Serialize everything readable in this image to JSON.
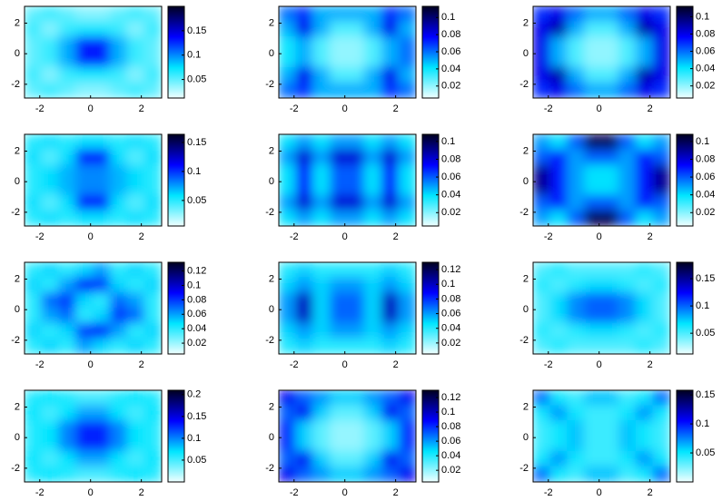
{
  "chart_data": [
    {
      "type": "heatmap",
      "xlim": [
        -2.6,
        2.8
      ],
      "ylim": [
        -2.9,
        3.1
      ],
      "xticks": [
        -2,
        0,
        2
      ],
      "yticks": [
        2,
        0,
        -2
      ],
      "clim": [
        0.012,
        0.2
      ],
      "cticks": [
        0.05,
        0.1,
        0.15
      ],
      "colormap": [
        "#f0ffff",
        "#00e5ff",
        "#0000ff",
        "#000020"
      ],
      "z": [
        [
          0.05,
          0.06,
          0.05,
          0.04,
          0.04,
          0.05,
          0.06,
          0.05
        ],
        [
          0.06,
          0.04,
          0.06,
          0.07,
          0.07,
          0.06,
          0.04,
          0.06
        ],
        [
          0.05,
          0.06,
          0.09,
          0.13,
          0.13,
          0.09,
          0.06,
          0.05
        ],
        [
          0.05,
          0.06,
          0.09,
          0.13,
          0.13,
          0.09,
          0.06,
          0.05
        ],
        [
          0.06,
          0.04,
          0.06,
          0.07,
          0.07,
          0.06,
          0.04,
          0.06
        ],
        [
          0.05,
          0.06,
          0.05,
          0.04,
          0.04,
          0.05,
          0.06,
          0.05
        ]
      ]
    },
    {
      "type": "heatmap",
      "xlim": [
        -2.6,
        2.8
      ],
      "ylim": [
        -2.9,
        3.1
      ],
      "xticks": [
        -2,
        0,
        2
      ],
      "yticks": [
        2,
        0,
        -2
      ],
      "clim": [
        0.006,
        0.113
      ],
      "cticks": [
        0.02,
        0.04,
        0.06,
        0.08,
        0.1
      ],
      "colormap": [
        "#f0ffff",
        "#00e5ff",
        "#0000ff",
        "#000020"
      ],
      "z": [
        [
          0.06,
          0.07,
          0.05,
          0.05,
          0.05,
          0.05,
          0.07,
          0.06
        ],
        [
          0.05,
          0.08,
          0.05,
          0.03,
          0.03,
          0.05,
          0.08,
          0.05
        ],
        [
          0.04,
          0.05,
          0.03,
          0.02,
          0.02,
          0.03,
          0.05,
          0.06
        ],
        [
          0.04,
          0.05,
          0.03,
          0.02,
          0.02,
          0.03,
          0.05,
          0.06
        ],
        [
          0.05,
          0.08,
          0.05,
          0.03,
          0.03,
          0.05,
          0.08,
          0.05
        ],
        [
          0.06,
          0.07,
          0.05,
          0.05,
          0.05,
          0.05,
          0.07,
          0.06
        ]
      ]
    },
    {
      "type": "heatmap",
      "xlim": [
        -2.6,
        2.8
      ],
      "ylim": [
        -2.9,
        3.1
      ],
      "xticks": [
        -2,
        0,
        2
      ],
      "yticks": [
        2,
        0,
        -2
      ],
      "clim": [
        0.006,
        0.112
      ],
      "cticks": [
        0.02,
        0.04,
        0.06,
        0.08,
        0.1
      ],
      "colormap": [
        "#f0ffff",
        "#00e5ff",
        "#0000ff",
        "#000020"
      ],
      "z": [
        [
          0.07,
          0.08,
          0.06,
          0.05,
          0.05,
          0.06,
          0.08,
          0.07
        ],
        [
          0.08,
          0.09,
          0.05,
          0.03,
          0.03,
          0.05,
          0.09,
          0.08
        ],
        [
          0.08,
          0.05,
          0.03,
          0.02,
          0.02,
          0.03,
          0.05,
          0.08
        ],
        [
          0.08,
          0.05,
          0.03,
          0.02,
          0.02,
          0.03,
          0.05,
          0.08
        ],
        [
          0.08,
          0.09,
          0.05,
          0.03,
          0.03,
          0.05,
          0.09,
          0.08
        ],
        [
          0.07,
          0.08,
          0.06,
          0.05,
          0.05,
          0.06,
          0.08,
          0.07
        ]
      ]
    },
    {
      "type": "heatmap",
      "xlim": [
        -2.6,
        2.8
      ],
      "ylim": [
        -2.9,
        3.1
      ],
      "xticks": [
        -2,
        0,
        2
      ],
      "yticks": [
        2,
        0,
        -2
      ],
      "clim": [
        0.006,
        0.164
      ],
      "cticks": [
        0.05,
        0.1,
        0.15
      ],
      "colormap": [
        "#f0ffff",
        "#00e5ff",
        "#0000ff",
        "#000020"
      ],
      "z": [
        [
          0.05,
          0.06,
          0.05,
          0.06,
          0.06,
          0.05,
          0.06,
          0.05
        ],
        [
          0.06,
          0.04,
          0.06,
          0.11,
          0.11,
          0.06,
          0.04,
          0.06
        ],
        [
          0.05,
          0.06,
          0.07,
          0.08,
          0.08,
          0.07,
          0.06,
          0.05
        ],
        [
          0.05,
          0.06,
          0.07,
          0.08,
          0.08,
          0.07,
          0.06,
          0.05
        ],
        [
          0.06,
          0.04,
          0.06,
          0.11,
          0.11,
          0.06,
          0.04,
          0.06
        ],
        [
          0.05,
          0.06,
          0.05,
          0.06,
          0.06,
          0.05,
          0.06,
          0.05
        ]
      ]
    },
    {
      "type": "heatmap",
      "xlim": [
        -2.6,
        2.8
      ],
      "ylim": [
        -2.9,
        3.1
      ],
      "xticks": [
        -2,
        0,
        2
      ],
      "yticks": [
        2,
        0,
        -2
      ],
      "clim": [
        0.005,
        0.108
      ],
      "cticks": [
        0.02,
        0.04,
        0.06,
        0.08,
        0.1
      ],
      "colormap": [
        "#f0ffff",
        "#00e5ff",
        "#0000ff",
        "#000020"
      ],
      "z": [
        [
          0.04,
          0.05,
          0.04,
          0.05,
          0.05,
          0.04,
          0.05,
          0.04
        ],
        [
          0.05,
          0.08,
          0.05,
          0.08,
          0.08,
          0.05,
          0.08,
          0.05
        ],
        [
          0.04,
          0.07,
          0.04,
          0.06,
          0.06,
          0.04,
          0.07,
          0.04
        ],
        [
          0.04,
          0.07,
          0.04,
          0.06,
          0.06,
          0.04,
          0.07,
          0.04
        ],
        [
          0.05,
          0.08,
          0.05,
          0.08,
          0.08,
          0.05,
          0.08,
          0.05
        ],
        [
          0.04,
          0.05,
          0.04,
          0.05,
          0.05,
          0.04,
          0.05,
          0.04
        ]
      ]
    },
    {
      "type": "heatmap",
      "xlim": [
        -2.6,
        2.8
      ],
      "ylim": [
        -2.9,
        3.1
      ],
      "xticks": [
        -2,
        0,
        2
      ],
      "yticks": [
        2,
        0,
        -2
      ],
      "clim": [
        0.005,
        0.108
      ],
      "cticks": [
        0.02,
        0.04,
        0.06,
        0.08,
        0.1
      ],
      "colormap": [
        "#f0ffff",
        "#00e5ff",
        "#0000ff",
        "#000020"
      ],
      "z": [
        [
          0.05,
          0.04,
          0.06,
          0.1,
          0.1,
          0.06,
          0.04,
          0.05
        ],
        [
          0.06,
          0.07,
          0.05,
          0.06,
          0.06,
          0.05,
          0.07,
          0.06
        ],
        [
          0.09,
          0.07,
          0.05,
          0.04,
          0.04,
          0.05,
          0.07,
          0.09
        ],
        [
          0.09,
          0.07,
          0.05,
          0.04,
          0.04,
          0.05,
          0.07,
          0.09
        ],
        [
          0.06,
          0.07,
          0.05,
          0.06,
          0.06,
          0.05,
          0.07,
          0.06
        ],
        [
          0.05,
          0.04,
          0.06,
          0.1,
          0.1,
          0.06,
          0.04,
          0.05
        ]
      ]
    },
    {
      "type": "heatmap",
      "xlim": [
        -2.6,
        2.8
      ],
      "ylim": [
        -2.9,
        3.1
      ],
      "xticks": [
        -2,
        0,
        2
      ],
      "yticks": [
        2,
        0,
        -2
      ],
      "clim": [
        0.005,
        0.132
      ],
      "cticks": [
        0.02,
        0.04,
        0.06,
        0.08,
        0.1,
        0.12
      ],
      "colormap": [
        "#f0ffff",
        "#00e5ff",
        "#0000ff",
        "#000020"
      ],
      "z": [
        [
          0.04,
          0.05,
          0.04,
          0.05,
          0.06,
          0.04,
          0.05,
          0.04
        ],
        [
          0.05,
          0.04,
          0.06,
          0.09,
          0.08,
          0.05,
          0.04,
          0.05
        ],
        [
          0.04,
          0.07,
          0.08,
          0.05,
          0.04,
          0.07,
          0.06,
          0.04
        ],
        [
          0.04,
          0.06,
          0.07,
          0.04,
          0.05,
          0.08,
          0.07,
          0.04
        ],
        [
          0.05,
          0.04,
          0.05,
          0.08,
          0.09,
          0.06,
          0.04,
          0.05
        ],
        [
          0.04,
          0.05,
          0.04,
          0.06,
          0.05,
          0.04,
          0.05,
          0.04
        ]
      ]
    },
    {
      "type": "heatmap",
      "xlim": [
        -2.6,
        2.8
      ],
      "ylim": [
        -2.9,
        3.1
      ],
      "xticks": [
        -2,
        0,
        2
      ],
      "yticks": [
        2,
        0,
        -2
      ],
      "clim": [
        0.005,
        0.13
      ],
      "cticks": [
        0.02,
        0.04,
        0.06,
        0.08,
        0.1,
        0.12
      ],
      "colormap": [
        "#f0ffff",
        "#00e5ff",
        "#0000ff",
        "#000020"
      ],
      "z": [
        [
          0.04,
          0.05,
          0.04,
          0.04,
          0.04,
          0.04,
          0.05,
          0.04
        ],
        [
          0.05,
          0.06,
          0.05,
          0.06,
          0.06,
          0.05,
          0.06,
          0.05
        ],
        [
          0.06,
          0.1,
          0.05,
          0.07,
          0.07,
          0.05,
          0.1,
          0.06
        ],
        [
          0.06,
          0.1,
          0.05,
          0.07,
          0.07,
          0.05,
          0.1,
          0.06
        ],
        [
          0.05,
          0.06,
          0.05,
          0.06,
          0.06,
          0.05,
          0.06,
          0.05
        ],
        [
          0.04,
          0.05,
          0.04,
          0.04,
          0.04,
          0.04,
          0.05,
          0.04
        ]
      ]
    },
    {
      "type": "heatmap",
      "xlim": [
        -2.6,
        2.8
      ],
      "ylim": [
        -2.9,
        3.1
      ],
      "xticks": [
        -2,
        0,
        2
      ],
      "yticks": [
        2,
        0,
        -2
      ],
      "clim": [
        0.012,
        0.18
      ],
      "cticks": [
        0.05,
        0.1,
        0.15
      ],
      "colormap": [
        "#f0ffff",
        "#00e5ff",
        "#0000ff",
        "#000020"
      ],
      "z": [
        [
          0.05,
          0.06,
          0.05,
          0.05,
          0.05,
          0.05,
          0.06,
          0.05
        ],
        [
          0.06,
          0.05,
          0.06,
          0.07,
          0.07,
          0.06,
          0.05,
          0.06
        ],
        [
          0.05,
          0.07,
          0.09,
          0.1,
          0.1,
          0.09,
          0.07,
          0.05
        ],
        [
          0.05,
          0.07,
          0.09,
          0.1,
          0.1,
          0.09,
          0.07,
          0.05
        ],
        [
          0.06,
          0.05,
          0.06,
          0.07,
          0.07,
          0.06,
          0.05,
          0.06
        ],
        [
          0.05,
          0.06,
          0.05,
          0.05,
          0.05,
          0.05,
          0.06,
          0.05
        ]
      ]
    },
    {
      "type": "heatmap",
      "xlim": [
        -2.6,
        2.8
      ],
      "ylim": [
        -2.9,
        3.1
      ],
      "xticks": [
        -2,
        0,
        2
      ],
      "yticks": [
        2,
        0,
        -2
      ],
      "clim": [
        0,
        0.21
      ],
      "cticks": [
        0.05,
        0.1,
        0.15,
        0.2
      ],
      "colormap": [
        "#f0ffff",
        "#00e5ff",
        "#0000ff",
        "#000020"
      ],
      "z": [
        [
          0.06,
          0.07,
          0.06,
          0.05,
          0.05,
          0.06,
          0.07,
          0.06
        ],
        [
          0.07,
          0.05,
          0.07,
          0.09,
          0.09,
          0.07,
          0.05,
          0.07
        ],
        [
          0.06,
          0.07,
          0.1,
          0.13,
          0.13,
          0.1,
          0.07,
          0.06
        ],
        [
          0.06,
          0.07,
          0.1,
          0.13,
          0.13,
          0.1,
          0.07,
          0.06
        ],
        [
          0.07,
          0.05,
          0.07,
          0.09,
          0.09,
          0.07,
          0.05,
          0.07
        ],
        [
          0.06,
          0.07,
          0.06,
          0.05,
          0.05,
          0.06,
          0.07,
          0.06
        ]
      ]
    },
    {
      "type": "heatmap",
      "xlim": [
        -2.6,
        2.8
      ],
      "ylim": [
        -2.9,
        3.1
      ],
      "xticks": [
        -2,
        0,
        2
      ],
      "yticks": [
        2,
        0,
        -2
      ],
      "clim": [
        0.004,
        0.13
      ],
      "cticks": [
        0.02,
        0.04,
        0.06,
        0.08,
        0.1,
        0.12
      ],
      "colormap": [
        "#f0ffff",
        "#00e5ff",
        "#0000ff",
        "#000020"
      ],
      "z": [
        [
          0.09,
          0.07,
          0.06,
          0.05,
          0.05,
          0.06,
          0.07,
          0.09
        ],
        [
          0.07,
          0.09,
          0.05,
          0.03,
          0.03,
          0.05,
          0.09,
          0.07
        ],
        [
          0.08,
          0.05,
          0.03,
          0.02,
          0.02,
          0.03,
          0.05,
          0.08
        ],
        [
          0.08,
          0.05,
          0.03,
          0.02,
          0.02,
          0.03,
          0.05,
          0.08
        ],
        [
          0.07,
          0.09,
          0.05,
          0.03,
          0.03,
          0.05,
          0.09,
          0.07
        ],
        [
          0.09,
          0.07,
          0.06,
          0.05,
          0.05,
          0.06,
          0.07,
          0.09
        ]
      ]
    },
    {
      "type": "heatmap",
      "xlim": [
        -2.6,
        2.8
      ],
      "ylim": [
        -2.9,
        3.1
      ],
      "xticks": [
        -2,
        0,
        2
      ],
      "yticks": [
        2,
        0,
        -2
      ],
      "clim": [
        0,
        0.158
      ],
      "cticks": [
        0.05,
        0.1,
        0.15
      ],
      "colormap": [
        "#f0ffff",
        "#00e5ff",
        "#0000ff",
        "#000020"
      ],
      "z": [
        [
          0.08,
          0.05,
          0.04,
          0.06,
          0.06,
          0.04,
          0.05,
          0.08
        ],
        [
          0.05,
          0.07,
          0.05,
          0.04,
          0.04,
          0.05,
          0.07,
          0.05
        ],
        [
          0.04,
          0.05,
          0.06,
          0.04,
          0.04,
          0.06,
          0.05,
          0.04
        ],
        [
          0.04,
          0.05,
          0.06,
          0.04,
          0.04,
          0.06,
          0.05,
          0.04
        ],
        [
          0.05,
          0.07,
          0.05,
          0.04,
          0.04,
          0.05,
          0.07,
          0.05
        ],
        [
          0.08,
          0.05,
          0.04,
          0.06,
          0.06,
          0.04,
          0.05,
          0.08
        ]
      ]
    }
  ]
}
